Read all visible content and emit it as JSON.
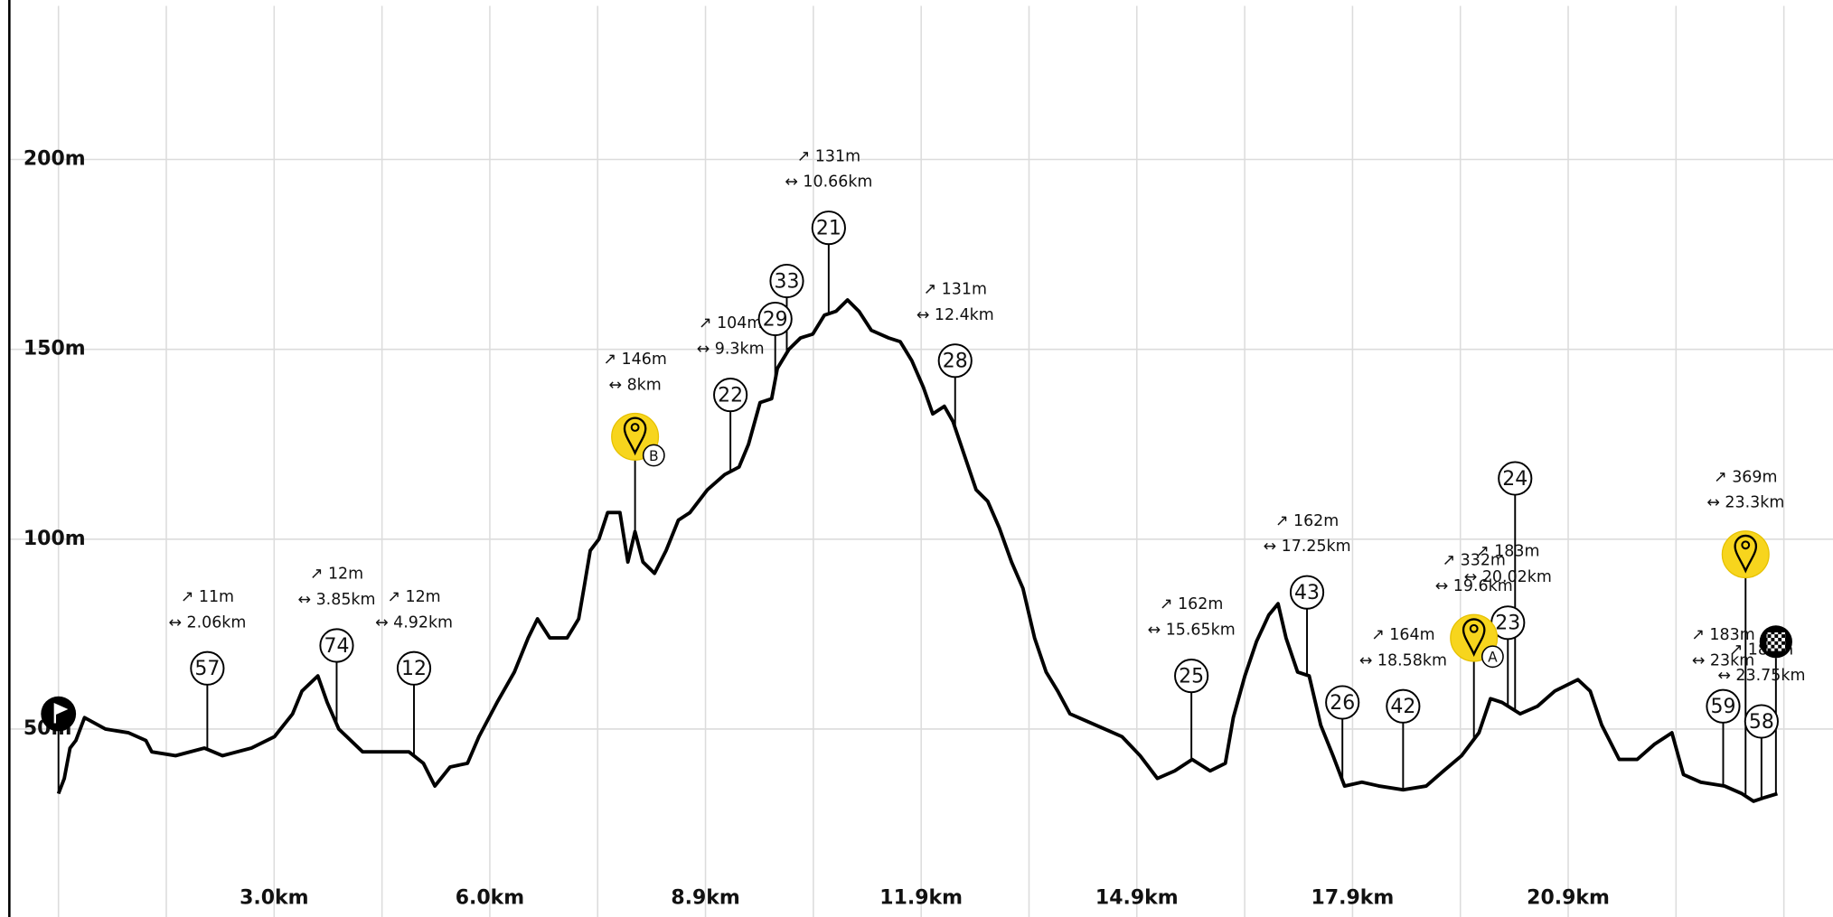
{
  "chart_data": {
    "type": "line",
    "color": "#000000",
    "grid": true,
    "xlim": [
      -0.68,
      24.56
    ],
    "ylim": [
      0.5,
      242
    ],
    "xticks": [
      {
        "value": 2.985,
        "label": "3.0km"
      },
      {
        "value": 5.97,
        "label": "6.0km"
      },
      {
        "value": 8.955,
        "label": "8.9km"
      },
      {
        "value": 11.94,
        "label": "11.9km"
      },
      {
        "value": 14.925,
        "label": "14.9km"
      },
      {
        "value": 17.91,
        "label": "17.9km"
      },
      {
        "value": 20.895,
        "label": "20.9km"
      }
    ],
    "yticks": [
      {
        "value": 50,
        "label": "50m"
      },
      {
        "value": 100,
        "label": "100m"
      },
      {
        "value": 150,
        "label": "150m"
      },
      {
        "value": 200,
        "label": "200m"
      }
    ],
    "x": [
      0,
      0.08,
      0.16,
      0.24,
      0.36,
      0.65,
      0.97,
      1.21,
      1.29,
      1.62,
      2.02,
      2.27,
      2.67,
      2.99,
      3.24,
      3.37,
      3.59,
      3.72,
      3.88,
      4.21,
      4.85,
      5.05,
      5.21,
      5.42,
      5.66,
      5.82,
      6.07,
      6.31,
      6.5,
      6.63,
      6.8,
      7.04,
      7.2,
      7.28,
      7.36,
      7.48,
      7.6,
      7.77,
      7.88,
      7.98,
      8.09,
      8.25,
      8.41,
      8.58,
      8.74,
      8.98,
      9.22,
      9.42,
      9.55,
      9.71,
      9.87,
      9.95,
      10.11,
      10.27,
      10.44,
      10.6,
      10.76,
      10.92,
      11.08,
      11.25,
      11.49,
      11.65,
      11.81,
      11.97,
      12.1,
      12.26,
      12.38,
      12.54,
      12.7,
      12.86,
      13.02,
      13.19,
      13.35,
      13.51,
      13.67,
      13.83,
      14.0,
      14.24,
      14.48,
      14.72,
      14.97,
      15.21,
      15.45,
      15.69,
      15.94,
      16.15,
      16.26,
      16.42,
      16.58,
      16.75,
      16.88,
      16.99,
      17.15,
      17.31,
      17.47,
      17.64,
      17.8,
      18.04,
      18.28,
      18.61,
      18.93,
      19.17,
      19.42,
      19.66,
      19.82,
      19.98,
      20.23,
      20.47,
      20.71,
      21.03,
      21.2,
      21.36,
      21.6,
      21.85,
      22.09,
      22.33,
      22.49,
      22.73,
      23.06,
      23.3,
      23.46,
      23.62,
      23.79
    ],
    "values": [
      33,
      37,
      45,
      47,
      53,
      50,
      49,
      47,
      44,
      43,
      45,
      43,
      45,
      48,
      54,
      60,
      64,
      57,
      50,
      44,
      44,
      41,
      35,
      40,
      41,
      48,
      57,
      65,
      74,
      79,
      74,
      74,
      79,
      88,
      97,
      100,
      107,
      107,
      94,
      102,
      94,
      91,
      97,
      105,
      107,
      113,
      117,
      119,
      125,
      136,
      137,
      145,
      150,
      153,
      154,
      159,
      160,
      163,
      160,
      155,
      153,
      152,
      147,
      140,
      133,
      135,
      131,
      122,
      113,
      110,
      103,
      94,
      87,
      74,
      65,
      60,
      54,
      52,
      50,
      48,
      43,
      37,
      39,
      42,
      39,
      41,
      53,
      64,
      73,
      80,
      83,
      74,
      65,
      64,
      51,
      43,
      35,
      36,
      35,
      34,
      35,
      39,
      43,
      49,
      58,
      57,
      54,
      56,
      60,
      63,
      60,
      51,
      42,
      42,
      46,
      49,
      38,
      36,
      35,
      33,
      31,
      32,
      33
    ],
    "markers": [
      {
        "label": "57",
        "x": 2.06,
        "y": 66,
        "stats": [
          "↗ 11m",
          "↔ 2.06km"
        ]
      },
      {
        "label": "74",
        "x": 3.85,
        "y": 72,
        "stats": [
          "↗ 12m",
          "↔ 3.85km"
        ]
      },
      {
        "label": "12",
        "x": 4.92,
        "y": 66,
        "stats": [
          "↗ 12m",
          "↔ 4.92km"
        ]
      },
      {
        "label": "22",
        "x": 9.3,
        "y": 138,
        "stats": [
          "↗ 104m",
          "↔ 9.3km"
        ]
      },
      {
        "label": "29",
        "x": 9.92,
        "y": 158
      },
      {
        "label": "33",
        "x": 10.08,
        "y": 168
      },
      {
        "label": "21",
        "x": 10.66,
        "y": 182,
        "stats": [
          "↗ 131m",
          "↔ 10.66km"
        ]
      },
      {
        "label": "28",
        "x": 12.41,
        "y": 147,
        "stats": [
          "↗ 131m",
          "↔ 12.4km"
        ]
      },
      {
        "label": "25",
        "x": 15.68,
        "y": 64,
        "stats": [
          "↗ 162m",
          "↔ 15.65km"
        ]
      },
      {
        "label": "43",
        "x": 17.28,
        "y": 86,
        "stats": [
          "↗ 162m",
          "↔ 17.25km"
        ]
      },
      {
        "label": "26",
        "x": 17.77,
        "y": 57
      },
      {
        "label": "42",
        "x": 18.61,
        "y": 56,
        "stats": [
          "↗ 164m",
          "↔ 18.58km"
        ]
      },
      {
        "label": "23",
        "x": 20.06,
        "y": 78,
        "stats": [
          "↗ 183m",
          "↔ 20.02km"
        ]
      },
      {
        "label": "24",
        "x": 20.16,
        "y": 116
      },
      {
        "label": "59",
        "x": 23.04,
        "y": 56,
        "stats": [
          "↗ 183m",
          "↔ 23km"
        ]
      },
      {
        "label": "58",
        "x": 23.57,
        "y": 52,
        "stats": [
          "↗ 183m",
          "↔ 23.75km"
        ]
      }
    ],
    "waypoints": [
      {
        "badge": "B",
        "x": 7.98,
        "y": 127,
        "stats": [
          "↗ 146m",
          "↔ 8km"
        ]
      },
      {
        "badge": "A",
        "x": 19.59,
        "y": 74,
        "stats": [
          "↗ 332m",
          "↔ 19.6km"
        ]
      },
      {
        "x": 23.35,
        "y": 96,
        "stats": [
          "↗ 369m",
          "↔ 23.3km"
        ]
      }
    ],
    "start": {
      "x": 0,
      "y": 54
    },
    "finish": {
      "x": 23.77,
      "y": 73
    }
  }
}
